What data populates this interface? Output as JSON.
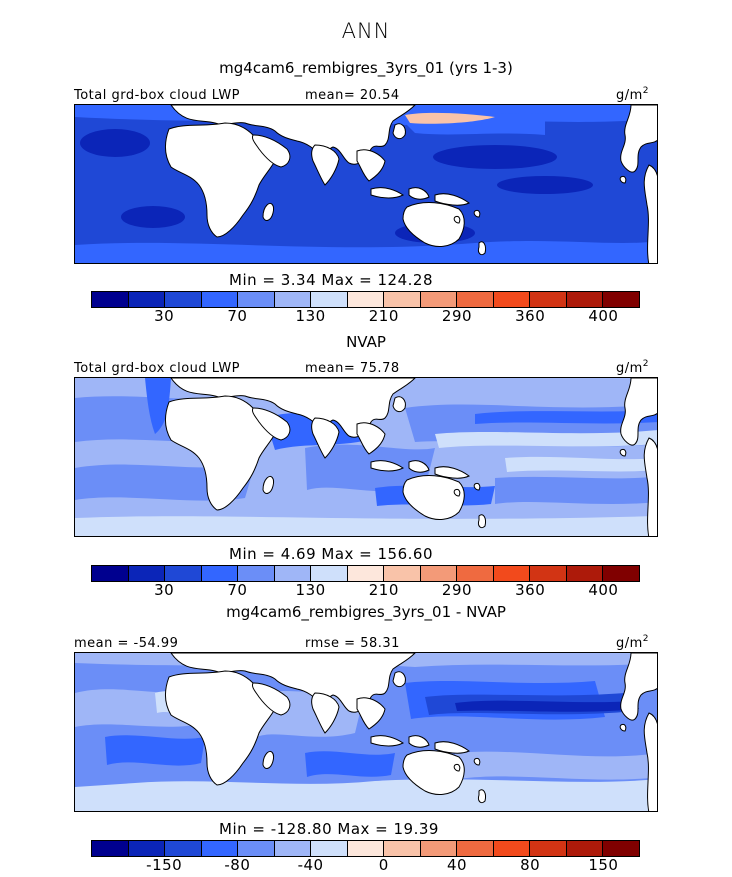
{
  "season": "ANN",
  "panels": [
    {
      "title": "mg4cam6_rembigres_3yrs_01 (yrs 1-3)",
      "left_label": "Total grd-box cloud LWP",
      "center_label": "mean=  20.54",
      "units": "g/m",
      "units_sup": "2",
      "minmax": "Min =    3.34  Max =  124.28",
      "colorbar_labels": [
        "30",
        "70",
        "130",
        "210",
        "290",
        "360",
        "400"
      ]
    },
    {
      "title": "NVAP",
      "left_label": "Total grd-box cloud LWP",
      "center_label": "mean=  75.78",
      "units": "g/m",
      "units_sup": "2",
      "minmax": "Min =    4.69  Max =  156.60",
      "colorbar_labels": [
        "30",
        "70",
        "130",
        "210",
        "290",
        "360",
        "400"
      ]
    },
    {
      "title": "mg4cam6_rembigres_3yrs_01 - NVAP",
      "left_label": "mean = -54.99",
      "center_label": "rmse =  58.31",
      "units": "g/m",
      "units_sup": "2",
      "minmax": "Min = -128.80  Max =   19.39",
      "colorbar_labels": [
        "-150",
        "-80",
        "-40",
        "0",
        "40",
        "80",
        "150"
      ]
    }
  ],
  "colorbar_colors": [
    "#00008f",
    "#0b25b8",
    "#1f48d6",
    "#3366ff",
    "#6b8ef7",
    "#9fb6f7",
    "#cfe0fb",
    "#fde7dc",
    "#f9c3a9",
    "#f39a78",
    "#ef6a40",
    "#f24a1c",
    "#d23414",
    "#ad1a0a",
    "#800000"
  ],
  "map_colors": {
    "land": "#ffffff",
    "coast": "#000000",
    "p1_base": "#1f48d6",
    "p1_deep": "#0b25b8",
    "p1_light": "#3366ff",
    "p1_peach": "#f9c3a9",
    "p2_base": "#9fb6f7",
    "p2_mid": "#6b8ef7",
    "p2_strong": "#3366ff",
    "p2_pale": "#cfe0fb",
    "p3_base": "#6b8ef7",
    "p3_light": "#9fb6f7",
    "p3_pale": "#cfe0fb",
    "p3_strong": "#3366ff",
    "p3_deep": "#1f48d6",
    "p3_darkest": "#0b25b8"
  }
}
